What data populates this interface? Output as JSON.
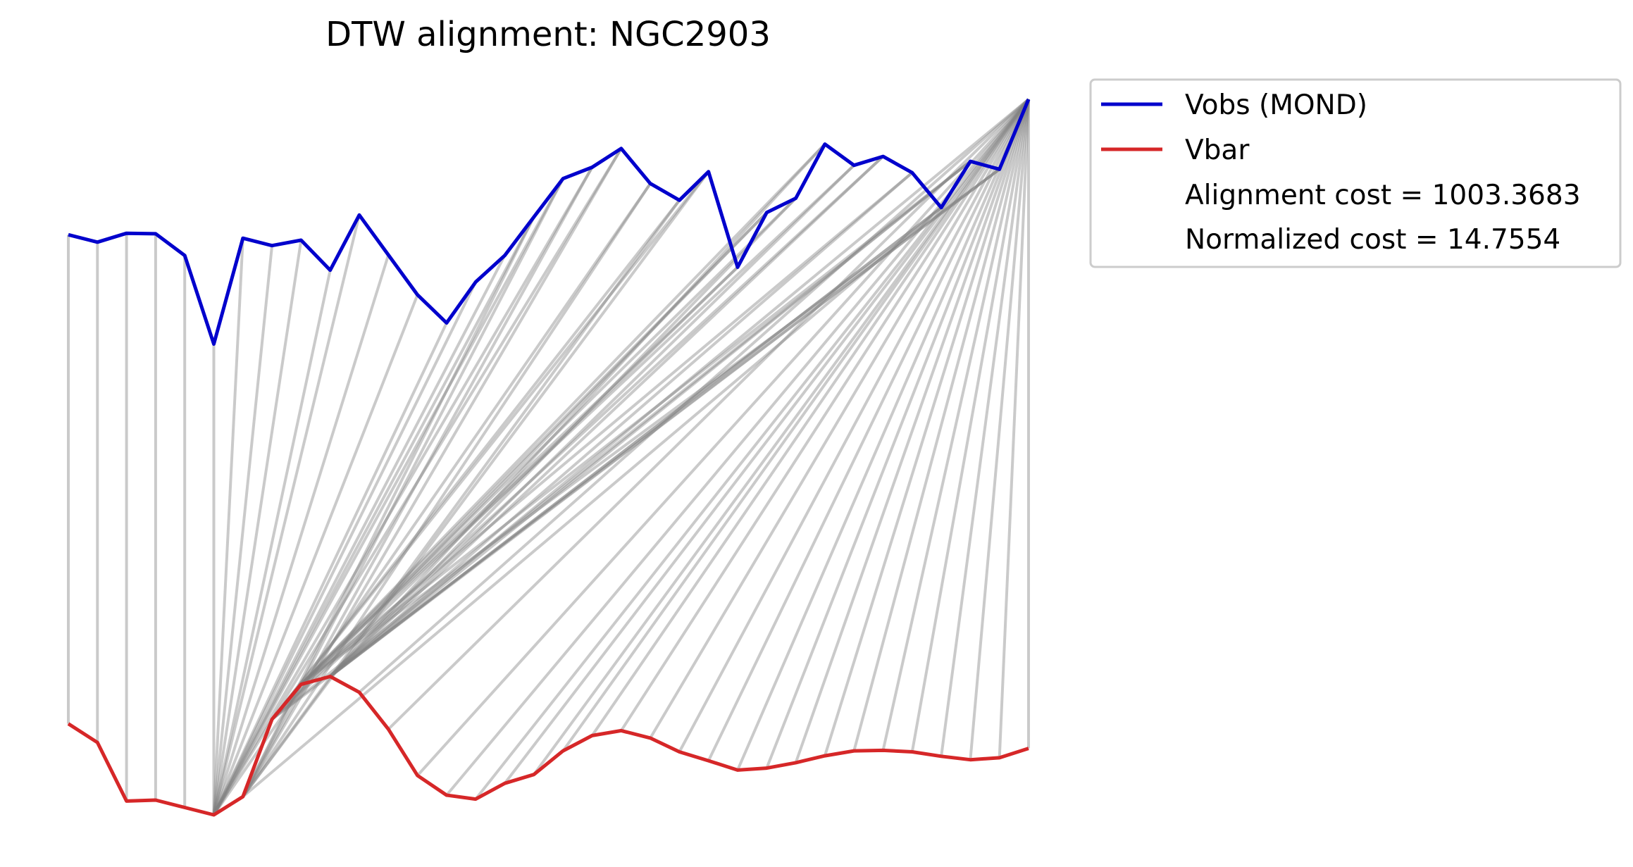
{
  "chart_data": {
    "type": "line",
    "title": "DTW alignment: NGC2903",
    "axes_visible": false,
    "grid": false,
    "legend_position": "outside-right",
    "series": [
      {
        "name": "Vobs (MOND)",
        "color": "#0000cc",
        "values": [
          32.5,
          31.0,
          32.8,
          32.7,
          28.3,
          10.3,
          31.8,
          30.3,
          31.4,
          25.3,
          36.5,
          28.4,
          20.3,
          14.6,
          22.9,
          28.3,
          36.1,
          43.9,
          46.2,
          50.0,
          42.9,
          39.5,
          45.3,
          25.9,
          37.0,
          39.9,
          50.9,
          46.6,
          48.4,
          45.1,
          38.0,
          47.4,
          45.8,
          60.0
        ]
      },
      {
        "name": "Vbar",
        "color": "#d62728",
        "values": [
          -66.8,
          -70.6,
          -82.5,
          -82.3,
          -83.8,
          -85.3,
          -81.6,
          -65.9,
          -58.8,
          -57.2,
          -60.4,
          -67.9,
          -77.3,
          -81.3,
          -82.1,
          -78.9,
          -77.1,
          -72.3,
          -69.2,
          -68.2,
          -69.7,
          -72.5,
          -74.3,
          -76.2,
          -75.8,
          -74.7,
          -73.3,
          -72.3,
          -72.2,
          -72.5,
          -73.4,
          -74.1,
          -73.7,
          -71.8
        ]
      }
    ],
    "alignment_path": [
      [
        0,
        0
      ],
      [
        1,
        1
      ],
      [
        2,
        2
      ],
      [
        3,
        3
      ],
      [
        4,
        4
      ],
      [
        5,
        5
      ],
      [
        6,
        5
      ],
      [
        7,
        5
      ],
      [
        8,
        5
      ],
      [
        9,
        5
      ],
      [
        10,
        5
      ],
      [
        11,
        5
      ],
      [
        12,
        5
      ],
      [
        13,
        5
      ],
      [
        14,
        5
      ],
      [
        15,
        5
      ],
      [
        16,
        5
      ],
      [
        17,
        5
      ],
      [
        18,
        5
      ],
      [
        19,
        6
      ],
      [
        20,
        6
      ],
      [
        21,
        7
      ],
      [
        22,
        7
      ],
      [
        23,
        8
      ],
      [
        24,
        8
      ],
      [
        25,
        9
      ],
      [
        26,
        9
      ],
      [
        27,
        9
      ],
      [
        28,
        9
      ],
      [
        29,
        9
      ],
      [
        30,
        9
      ],
      [
        31,
        9
      ],
      [
        32,
        9
      ],
      [
        33,
        9
      ],
      [
        33,
        10
      ],
      [
        33,
        11
      ],
      [
        33,
        12
      ],
      [
        33,
        13
      ],
      [
        33,
        14
      ],
      [
        33,
        15
      ],
      [
        33,
        16
      ],
      [
        33,
        17
      ],
      [
        33,
        18
      ],
      [
        33,
        19
      ],
      [
        33,
        20
      ],
      [
        33,
        21
      ],
      [
        33,
        22
      ],
      [
        33,
        23
      ],
      [
        33,
        24
      ],
      [
        33,
        25
      ],
      [
        33,
        26
      ],
      [
        33,
        27
      ],
      [
        33,
        28
      ],
      [
        33,
        29
      ],
      [
        33,
        30
      ],
      [
        33,
        31
      ],
      [
        33,
        32
      ],
      [
        33,
        33
      ],
      [
        30,
        6
      ],
      [
        31,
        7
      ],
      [
        32,
        8
      ],
      [
        32,
        7
      ],
      [
        31,
        8
      ],
      [
        30,
        9
      ],
      [
        29,
        8
      ],
      [
        28,
        7
      ],
      [
        27,
        8
      ],
      [
        26,
        8
      ],
      [
        25,
        8
      ],
      [
        24,
        7
      ],
      [
        23,
        7
      ],
      [
        22,
        6
      ],
      [
        21,
        6
      ],
      [
        20,
        5
      ],
      [
        19,
        5
      ],
      [
        16,
        6
      ],
      [
        17,
        6
      ],
      [
        18,
        6
      ]
    ],
    "legend": [
      {
        "label": "Vobs (MOND)",
        "type": "line",
        "color": "#0000cc"
      },
      {
        "label": "Vbar",
        "type": "line",
        "color": "#d62728"
      },
      {
        "label": "Alignment cost = 1003.3683",
        "type": "text"
      },
      {
        "label": "Normalized cost = 14.7554",
        "type": "text"
      }
    ],
    "alignment_line_color": "#808080"
  }
}
